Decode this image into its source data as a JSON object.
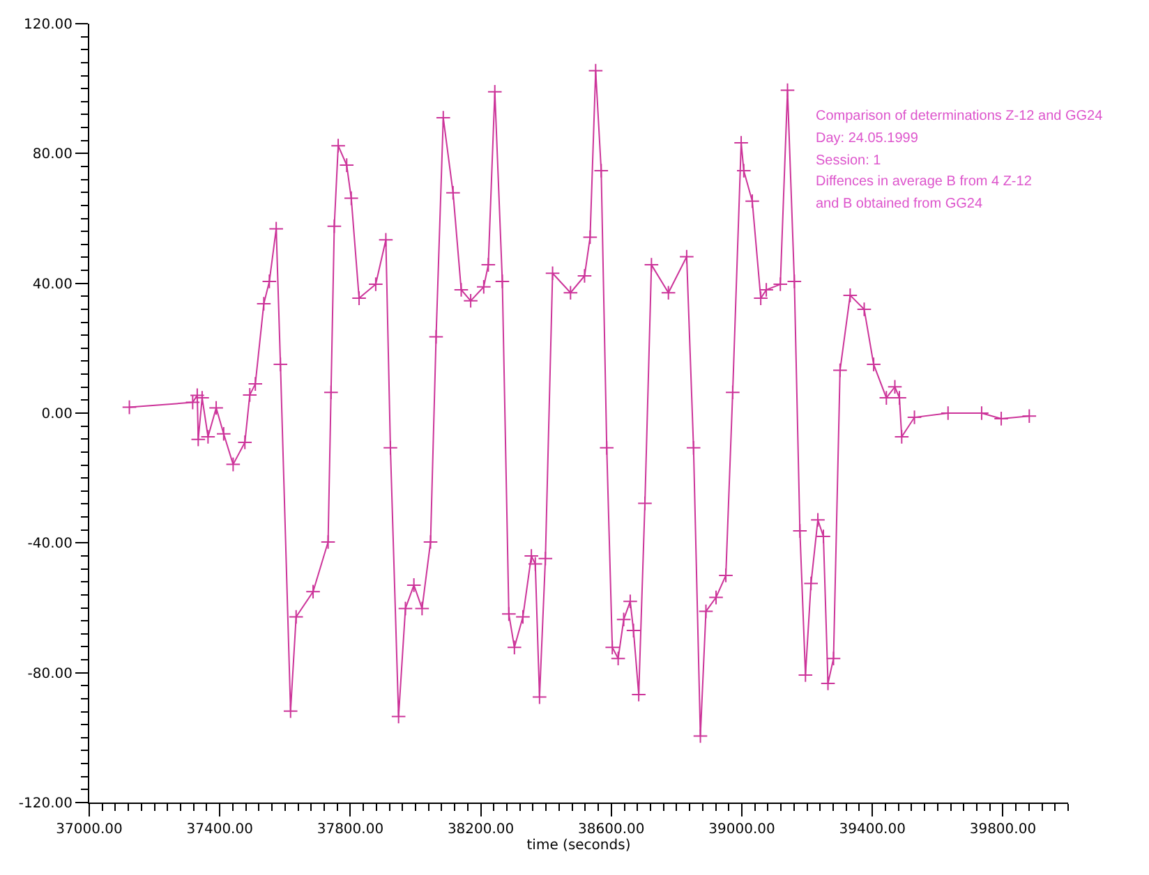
{
  "chart_data": {
    "type": "line",
    "xlabel": "time (seconds)",
    "annotations": [
      "Comparison of determinations Z-12 and GG24",
      "Day: 24.05.1999",
      "Session: 1",
      "Diffences in average B from 4 Z-12",
      "and B obtained from GG24"
    ],
    "marker": "cross",
    "line_style": "solid",
    "xlim": [
      37000,
      40000
    ],
    "ylim": [
      -120,
      120
    ],
    "xticks": [
      {
        "value": 37000,
        "label": "37000.00"
      },
      {
        "value": 37400,
        "label": "37400.00"
      },
      {
        "value": 37800,
        "label": "37800.00"
      },
      {
        "value": 38200,
        "label": "38200.00"
      },
      {
        "value": 38600,
        "label": "38600.00"
      },
      {
        "value": 39000,
        "label": "39000.00"
      },
      {
        "value": 39400,
        "label": "39400.00"
      },
      {
        "value": 39800,
        "label": "39800.00"
      },
      {
        "value": 37040,
        "label": null
      },
      {
        "value": 37080,
        "label": null
      },
      {
        "value": 37120,
        "label": null
      },
      {
        "value": 37160,
        "label": null
      },
      {
        "value": 37200,
        "label": null
      },
      {
        "value": 37240,
        "label": null
      },
      {
        "value": 37280,
        "label": null
      },
      {
        "value": 37320,
        "label": null
      },
      {
        "value": 37360,
        "label": null
      },
      {
        "value": 37440,
        "label": null
      },
      {
        "value": 37480,
        "label": null
      },
      {
        "value": 37520,
        "label": null
      },
      {
        "value": 37560,
        "label": null
      },
      {
        "value": 37600,
        "label": null
      },
      {
        "value": 37640,
        "label": null
      },
      {
        "value": 37680,
        "label": null
      },
      {
        "value": 37720,
        "label": null
      },
      {
        "value": 37760,
        "label": null
      },
      {
        "value": 37840,
        "label": null
      },
      {
        "value": 37880,
        "label": null
      },
      {
        "value": 37920,
        "label": null
      },
      {
        "value": 37960,
        "label": null
      },
      {
        "value": 38000,
        "label": null
      },
      {
        "value": 38040,
        "label": null
      },
      {
        "value": 38080,
        "label": null
      },
      {
        "value": 38120,
        "label": null
      },
      {
        "value": 38160,
        "label": null
      },
      {
        "value": 38240,
        "label": null
      },
      {
        "value": 38280,
        "label": null
      },
      {
        "value": 38320,
        "label": null
      },
      {
        "value": 38360,
        "label": null
      },
      {
        "value": 38400,
        "label": null
      },
      {
        "value": 38440,
        "label": null
      },
      {
        "value": 38480,
        "label": null
      },
      {
        "value": 38520,
        "label": null
      },
      {
        "value": 38560,
        "label": null
      },
      {
        "value": 38640,
        "label": null
      },
      {
        "value": 38680,
        "label": null
      },
      {
        "value": 38720,
        "label": null
      },
      {
        "value": 38760,
        "label": null
      },
      {
        "value": 38800,
        "label": null
      },
      {
        "value": 38840,
        "label": null
      },
      {
        "value": 38880,
        "label": null
      },
      {
        "value": 38920,
        "label": null
      },
      {
        "value": 38960,
        "label": null
      },
      {
        "value": 39040,
        "label": null
      },
      {
        "value": 39080,
        "label": null
      },
      {
        "value": 39120,
        "label": null
      },
      {
        "value": 39160,
        "label": null
      },
      {
        "value": 39200,
        "label": null
      },
      {
        "value": 39240,
        "label": null
      },
      {
        "value": 39280,
        "label": null
      },
      {
        "value": 39320,
        "label": null
      },
      {
        "value": 39360,
        "label": null
      },
      {
        "value": 39440,
        "label": null
      },
      {
        "value": 39480,
        "label": null
      },
      {
        "value": 39520,
        "label": null
      },
      {
        "value": 39560,
        "label": null
      },
      {
        "value": 39600,
        "label": null
      },
      {
        "value": 39640,
        "label": null
      },
      {
        "value": 39680,
        "label": null
      },
      {
        "value": 39720,
        "label": null
      },
      {
        "value": 39760,
        "label": null
      },
      {
        "value": 39840,
        "label": null
      },
      {
        "value": 39880,
        "label": null
      },
      {
        "value": 39920,
        "label": null
      },
      {
        "value": 39960,
        "label": null
      },
      {
        "value": 40000,
        "label": null
      }
    ],
    "yticks": [
      {
        "value": -120,
        "label": "-120.00"
      },
      {
        "value": -80,
        "label": "-80.00"
      },
      {
        "value": -40,
        "label": "-40.00"
      },
      {
        "value": 0,
        "label": "0.00"
      },
      {
        "value": 40,
        "label": "40.00"
      },
      {
        "value": 80,
        "label": "80.00"
      },
      {
        "value": 120,
        "label": "120.00"
      },
      {
        "value": -116,
        "label": null
      },
      {
        "value": -112,
        "label": null
      },
      {
        "value": -108,
        "label": null
      },
      {
        "value": -104,
        "label": null
      },
      {
        "value": -100,
        "label": null
      },
      {
        "value": -96,
        "label": null
      },
      {
        "value": -92,
        "label": null
      },
      {
        "value": -88,
        "label": null
      },
      {
        "value": -84,
        "label": null
      },
      {
        "value": -76,
        "label": null
      },
      {
        "value": -72,
        "label": null
      },
      {
        "value": -68,
        "label": null
      },
      {
        "value": -64,
        "label": null
      },
      {
        "value": -60,
        "label": null
      },
      {
        "value": -56,
        "label": null
      },
      {
        "value": -52,
        "label": null
      },
      {
        "value": -48,
        "label": null
      },
      {
        "value": -44,
        "label": null
      },
      {
        "value": -36,
        "label": null
      },
      {
        "value": -32,
        "label": null
      },
      {
        "value": -28,
        "label": null
      },
      {
        "value": -24,
        "label": null
      },
      {
        "value": -20,
        "label": null
      },
      {
        "value": -16,
        "label": null
      },
      {
        "value": -12,
        "label": null
      },
      {
        "value": -8,
        "label": null
      },
      {
        "value": -4,
        "label": null
      },
      {
        "value": 4,
        "label": null
      },
      {
        "value": 8,
        "label": null
      },
      {
        "value": 12,
        "label": null
      },
      {
        "value": 16,
        "label": null
      },
      {
        "value": 20,
        "label": null
      },
      {
        "value": 24,
        "label": null
      },
      {
        "value": 28,
        "label": null
      },
      {
        "value": 32,
        "label": null
      },
      {
        "value": 36,
        "label": null
      },
      {
        "value": 44,
        "label": null
      },
      {
        "value": 48,
        "label": null
      },
      {
        "value": 52,
        "label": null
      },
      {
        "value": 56,
        "label": null
      },
      {
        "value": 60,
        "label": null
      },
      {
        "value": 64,
        "label": null
      },
      {
        "value": 68,
        "label": null
      },
      {
        "value": 72,
        "label": null
      },
      {
        "value": 76,
        "label": null
      },
      {
        "value": 84,
        "label": null
      },
      {
        "value": 88,
        "label": null
      },
      {
        "value": 92,
        "label": null
      },
      {
        "value": 96,
        "label": null
      },
      {
        "value": 100,
        "label": null
      },
      {
        "value": 104,
        "label": null
      },
      {
        "value": 108,
        "label": null
      },
      {
        "value": 112,
        "label": null
      },
      {
        "value": 116,
        "label": null
      }
    ],
    "series": [
      {
        "color": "#cc3399",
        "x": [
          37123,
          37317,
          37331,
          37334,
          37346,
          37364,
          37389,
          37412,
          37441,
          37477,
          37492,
          37509,
          37535,
          37552,
          37573,
          37586,
          37617,
          37634,
          37686,
          37732,
          37741,
          37751,
          37763,
          37789,
          37803,
          37827,
          37878,
          37909,
          37923,
          37948,
          37969,
          37995,
          38020,
          38046,
          38063,
          38085,
          38115,
          38140,
          38169,
          38209,
          38223,
          38243,
          38266,
          38286,
          38303,
          38329,
          38355,
          38367,
          38380,
          38398,
          38420,
          38475,
          38518,
          38535,
          38552,
          38569,
          38586,
          38603,
          38621,
          38638,
          38658,
          38668,
          38684,
          38703,
          38723,
          38775,
          38831,
          38852,
          38873,
          38890,
          38921,
          38951,
          38972,
          38998,
          39006,
          39032,
          39058,
          39075,
          39118,
          39140,
          39161,
          39178,
          39195,
          39212,
          39233,
          39250,
          39264,
          39281,
          39301,
          39332,
          39375,
          39404,
          39443,
          39469,
          39483,
          39490,
          39529,
          39632,
          39735,
          39795,
          39881
        ],
        "values": [
          1.8,
          3.3,
          5.5,
          -8.1,
          4.7,
          -7.3,
          1.6,
          -6.4,
          -15.8,
          -9,
          5.6,
          9,
          33.7,
          40.6,
          56.8,
          15,
          -91.8,
          -62.8,
          -55,
          -39.7,
          6.4,
          57.6,
          82.4,
          76.4,
          66.2,
          35.4,
          39.7,
          53.4,
          -10.7,
          -93.5,
          -60.2,
          -53,
          -60.2,
          -39.7,
          23.5,
          91,
          67.9,
          38,
          34.6,
          38.9,
          45.7,
          99,
          40.6,
          -61.9,
          -72.2,
          -62.8,
          -44,
          -46.5,
          -87.5,
          -44.8,
          43.1,
          37.1,
          42.3,
          54.2,
          105.5,
          74.7,
          -10.7,
          -72.2,
          -75.6,
          -63.6,
          -58,
          -67,
          -86.7,
          -27.8,
          45.7,
          37.1,
          48.2,
          -10.7,
          -99.5,
          -61.1,
          -56.8,
          -50,
          6.4,
          83.3,
          74.7,
          65.3,
          35.4,
          38,
          39.7,
          99.5,
          40.6,
          -36.3,
          -80.7,
          -52.5,
          -32.9,
          -38,
          -83.3,
          -75.6,
          13.2,
          36.3,
          32,
          15,
          4.7,
          8.1,
          4.7,
          -7.3,
          -1.3,
          0,
          0,
          -1.7,
          -0.9
        ]
      }
    ]
  }
}
